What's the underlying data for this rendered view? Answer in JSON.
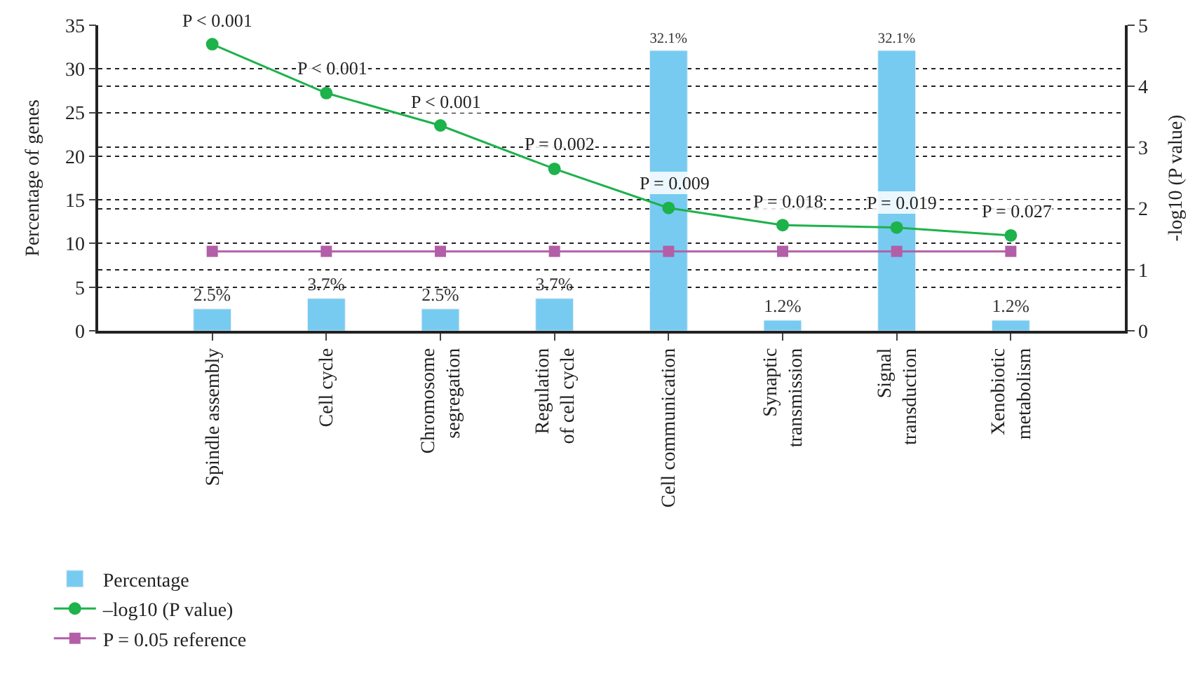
{
  "chart_data": {
    "type": "bar",
    "categories": [
      "Spindle assembly",
      "Cell cycle",
      "Chromosome\nsegregation",
      "Regulation\nof cell cycle",
      "Cell communication",
      "Synaptic\ntransmission",
      "Signal\ntransduction",
      "Xenobiotic\nmetabolism"
    ],
    "series": [
      {
        "name": "Percentage",
        "color": "#77cbf1",
        "values": [
          2.5,
          3.7,
          2.5,
          3.7,
          32.1,
          1.2,
          32.1,
          1.2
        ],
        "value_labels": [
          "2.5%",
          "3.7%",
          "2.5%",
          "3.7%",
          "32.1%",
          "1.2%",
          "32.1%",
          "1.2%"
        ]
      },
      {
        "name": "–log10 (P value)",
        "type": "line",
        "axis": "y2",
        "color": "#1db24b",
        "marker": "circle",
        "values": [
          4.69,
          3.89,
          3.36,
          2.65,
          2.01,
          1.73,
          1.69,
          1.56
        ]
      },
      {
        "name": "P = 0.05 reference",
        "type": "line",
        "axis": "y2",
        "color": "#b35fa8",
        "marker": "square",
        "values": [
          1.3,
          1.3,
          1.3,
          1.3,
          1.3,
          1.3,
          1.3,
          1.3
        ]
      }
    ],
    "ylabel": "Percentage of genes",
    "y2label": "-log10 (P value)",
    "ylim": [
      0,
      35
    ],
    "yticks": [
      0,
      5,
      10,
      15,
      20,
      25,
      30,
      35
    ],
    "y2lim": [
      0,
      5
    ],
    "y2ticks": [
      0,
      1,
      2,
      3,
      4,
      5
    ],
    "annotations": [
      "P < 0.001",
      "P < 0.001",
      "P < 0.001",
      "P = 0.002",
      "P = 0.009",
      "P = 0.018",
      "P = 0.019",
      "P = 0.027"
    ],
    "grid": true,
    "legend": "bottom left",
    "line_style": "solid"
  }
}
